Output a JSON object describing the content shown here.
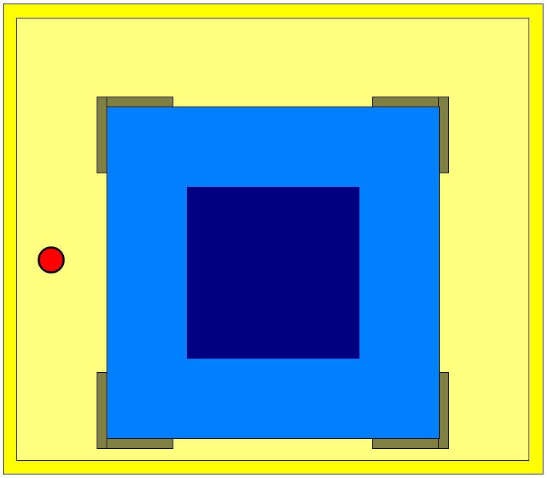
{
  "colors": {
    "outer_wall": "#ffff00",
    "floor": "#ffff80",
    "bracket": "#808040",
    "pool_outer": "#0080ff",
    "pool_inner": "#000080",
    "player_token": "#ff0000"
  },
  "icons": {
    "player_token": "red-circle-token"
  }
}
